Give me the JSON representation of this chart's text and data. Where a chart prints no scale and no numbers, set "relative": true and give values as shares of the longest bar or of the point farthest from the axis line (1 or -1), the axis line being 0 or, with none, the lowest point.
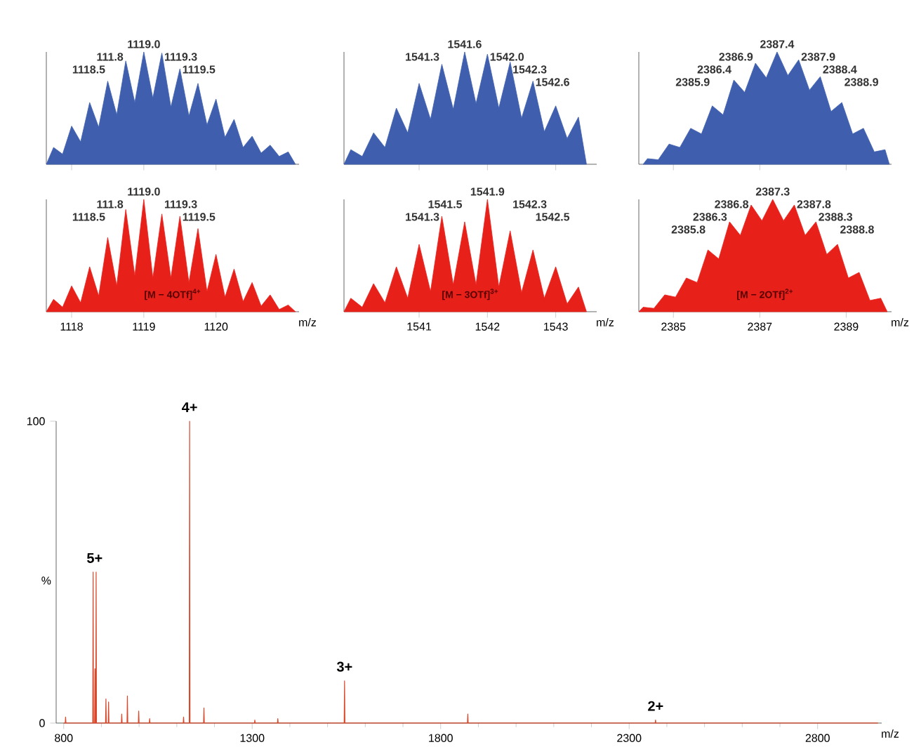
{
  "chart_data": [
    {
      "type": "area",
      "relative": true,
      "tick_labels": false,
      "xlim": [
        1117.65,
        1121.15
      ],
      "xticks": [
        1118,
        1119,
        1120
      ],
      "x": [
        1117.65,
        1117.75,
        1117.875,
        1118,
        1118.125,
        1118.25,
        1118.375,
        1118.5,
        1118.625,
        1118.75,
        1118.875,
        1119,
        1119.125,
        1119.25,
        1119.375,
        1119.5,
        1119.625,
        1119.75,
        1119.875,
        1120,
        1120.125,
        1120.25,
        1120.375,
        1120.5,
        1120.625,
        1120.75,
        1120.875,
        1121,
        1121.1
      ],
      "series": [
        {
          "color": "#3f5fae",
          "values": [
            0,
            0.15,
            0.09,
            0.34,
            0.2,
            0.55,
            0.33,
            0.74,
            0.44,
            0.92,
            0.55,
            1,
            0.59,
            0.99,
            0.51,
            0.85,
            0.43,
            0.72,
            0.35,
            0.58,
            0.24,
            0.4,
            0.15,
            0.25,
            0.1,
            0.17,
            0.07,
            0.11,
            0
          ]
        }
      ],
      "annotations": [
        {
          "text": "1118.5",
          "x": 1118.5,
          "y": 0.74
        },
        {
          "text": "111.8",
          "x": 1118.75,
          "y": 0.92
        },
        {
          "text": "1119.0",
          "x": 1119,
          "y": 1
        },
        {
          "text": "1119.3",
          "x": 1119.25,
          "y": 0.99
        },
        {
          "text": "1119.5",
          "x": 1119.5,
          "y": 0.85
        }
      ]
    },
    {
      "type": "area",
      "relative": true,
      "tick_labels": false,
      "xlim": [
        1539.9,
        1543.6
      ],
      "xticks": [
        1541,
        1542,
        1543
      ],
      "x": [
        1539.9,
        1540,
        1540.167,
        1540.333,
        1540.5,
        1540.667,
        1540.833,
        1541,
        1541.167,
        1541.333,
        1541.5,
        1541.667,
        1541.833,
        1542,
        1542.167,
        1542.333,
        1542.5,
        1542.667,
        1542.833,
        1543,
        1543.167,
        1543.333,
        1543.45
      ],
      "series": [
        {
          "color": "#3f5fae",
          "values": [
            0,
            0.13,
            0.07,
            0.28,
            0.15,
            0.5,
            0.28,
            0.72,
            0.4,
            0.89,
            0.49,
            1,
            0.54,
            0.98,
            0.5,
            0.91,
            0.41,
            0.74,
            0.29,
            0.52,
            0.23,
            0.42,
            0
          ]
        }
      ],
      "annotations": [
        {
          "text": "1541.3",
          "x": 1541.333,
          "y": 0.89
        },
        {
          "text": "1541.6",
          "x": 1541.667,
          "y": 1
        },
        {
          "text": "1542.0",
          "x": 1542,
          "y": 0.98
        },
        {
          "text": "1542.3",
          "x": 1542.333,
          "y": 0.91
        },
        {
          "text": "1542.6",
          "x": 1542.667,
          "y": 0.74
        }
      ]
    },
    {
      "type": "area",
      "relative": true,
      "tick_labels": false,
      "xlim": [
        2384.2,
        2390.05
      ],
      "xticks": [
        2385,
        2387,
        2389
      ],
      "x": [
        2384.3,
        2384.4,
        2384.65,
        2384.9,
        2385.15,
        2385.4,
        2385.65,
        2385.9,
        2386.15,
        2386.4,
        2386.65,
        2386.9,
        2387.15,
        2387.4,
        2387.65,
        2387.9,
        2388.15,
        2388.4,
        2388.65,
        2388.9,
        2389.15,
        2389.4,
        2389.65,
        2389.9,
        2390.0
      ],
      "series": [
        {
          "color": "#3f5fae",
          "values": [
            0,
            0.05,
            0.04,
            0.18,
            0.15,
            0.32,
            0.27,
            0.52,
            0.44,
            0.75,
            0.64,
            0.9,
            0.77,
            1,
            0.79,
            0.93,
            0.66,
            0.78,
            0.47,
            0.55,
            0.27,
            0.32,
            0.11,
            0.13,
            0
          ]
        }
      ],
      "annotations": [
        {
          "text": "2385.9",
          "x": 2385.9,
          "y": 0.52
        },
        {
          "text": "2386.4",
          "x": 2386.4,
          "y": 0.75
        },
        {
          "text": "2386.9",
          "x": 2386.9,
          "y": 0.9
        },
        {
          "text": "2387.4",
          "x": 2387.4,
          "y": 1
        },
        {
          "text": "2387.9",
          "x": 2387.9,
          "y": 0.93
        },
        {
          "text": "2388.4",
          "x": 2388.4,
          "y": 0.78
        },
        {
          "text": "2388.9",
          "x": 2388.9,
          "y": 0.55
        }
      ]
    },
    {
      "type": "area",
      "relative": true,
      "tick_labels": "x",
      "xlabel": "m/z",
      "xlim": [
        1117.65,
        1121.15
      ],
      "xticks": [
        1118,
        1119,
        1120
      ],
      "x": [
        1117.65,
        1117.75,
        1117.875,
        1118,
        1118.125,
        1118.25,
        1118.375,
        1118.5,
        1118.625,
        1118.75,
        1118.875,
        1119,
        1119.125,
        1119.25,
        1119.375,
        1119.5,
        1119.625,
        1119.75,
        1119.875,
        1120,
        1120.125,
        1120.25,
        1120.375,
        1120.5,
        1120.625,
        1120.75,
        1120.875,
        1121,
        1121.1
      ],
      "series": [
        {
          "color": "#e8201a",
          "values": [
            0,
            0.11,
            0.04,
            0.23,
            0.08,
            0.4,
            0.14,
            0.66,
            0.23,
            0.91,
            0.32,
            1,
            0.3,
            0.87,
            0.3,
            0.85,
            0.26,
            0.74,
            0.18,
            0.51,
            0.13,
            0.38,
            0.09,
            0.26,
            0.05,
            0.15,
            0.02,
            0.06,
            0
          ]
        }
      ],
      "annotations": [
        {
          "text": "1118.5",
          "x": 1118.5,
          "y": 0.66
        },
        {
          "text": "111.8",
          "x": 1118.75,
          "y": 0.91
        },
        {
          "text": "1119.0",
          "x": 1119,
          "y": 1
        },
        {
          "text": "1119.3",
          "x": 1119.25,
          "y": 0.87
        },
        {
          "text": "1119.5",
          "x": 1119.5,
          "y": 0.85
        },
        "[M − 4OTf]$^{4+}$"
      ]
    },
    {
      "type": "area",
      "relative": true,
      "tick_labels": "x",
      "xlabel": "m/z",
      "xlim": [
        1539.9,
        1543.6
      ],
      "xticks": [
        1541,
        1542,
        1543
      ],
      "x": [
        1539.9,
        1540,
        1540.167,
        1540.333,
        1540.5,
        1540.667,
        1540.833,
        1541,
        1541.167,
        1541.333,
        1541.5,
        1541.667,
        1541.833,
        1542,
        1542.167,
        1542.333,
        1542.5,
        1542.667,
        1542.833,
        1543,
        1543.167,
        1543.333,
        1543.45
      ],
      "series": [
        {
          "color": "#e8201a",
          "values": [
            0,
            0.12,
            0.04,
            0.25,
            0.08,
            0.4,
            0.12,
            0.6,
            0.18,
            0.85,
            0.24,
            0.8,
            0.24,
            1,
            0.22,
            0.72,
            0.17,
            0.55,
            0.12,
            0.4,
            0.07,
            0.22,
            0
          ]
        }
      ],
      "annotations": [
        {
          "text": "1541.3",
          "x": 1541.333,
          "y": 0.85
        },
        {
          "text": "1541.5",
          "x": 1541.667,
          "y": 0.8
        },
        {
          "text": "1541.9",
          "x": 1542,
          "y": 1
        },
        {
          "text": "1542.3",
          "x": 1542.333,
          "y": 0.72
        },
        {
          "text": "1542.5",
          "x": 1542.667,
          "y": 0.55
        },
        "[M − 3OTf]$^{3+}$"
      ]
    },
    {
      "type": "area",
      "relative": true,
      "tick_labels": "x",
      "xlabel": "m/z",
      "xlim": [
        2384.2,
        2390.05
      ],
      "xticks": [
        2385,
        2387,
        2389
      ],
      "x": [
        2384.2,
        2384.3,
        2384.55,
        2384.8,
        2385.05,
        2385.3,
        2385.55,
        2385.8,
        2386.05,
        2386.3,
        2386.55,
        2386.8,
        2387.05,
        2387.3,
        2387.55,
        2387.8,
        2388.05,
        2388.3,
        2388.55,
        2388.8,
        2389.05,
        2389.3,
        2389.55,
        2389.8,
        2389.95
      ],
      "series": [
        {
          "color": "#e8201a",
          "values": [
            0,
            0.04,
            0.03,
            0.15,
            0.13,
            0.3,
            0.26,
            0.55,
            0.47,
            0.8,
            0.68,
            0.95,
            0.81,
            1,
            0.81,
            0.95,
            0.68,
            0.8,
            0.51,
            0.6,
            0.3,
            0.35,
            0.1,
            0.12,
            0
          ]
        }
      ],
      "annotations": [
        {
          "text": "2385.8",
          "x": 2385.8,
          "y": 0.55
        },
        {
          "text": "2386.3",
          "x": 2386.3,
          "y": 0.8
        },
        {
          "text": "2386.8",
          "x": 2386.8,
          "y": 0.95
        },
        {
          "text": "2387.3",
          "x": 2387.3,
          "y": 1
        },
        {
          "text": "2387.8",
          "x": 2387.8,
          "y": 0.95
        },
        {
          "text": "2388.3",
          "x": 2388.3,
          "y": 0.8
        },
        {
          "text": "2388.8",
          "x": 2388.8,
          "y": 0.6
        },
        "[M − 2OTf]$^{2+}$"
      ]
    },
    {
      "type": "line",
      "xlabel": "m/z",
      "ylabel": "%",
      "xlim": [
        780,
        2970
      ],
      "xticks": [
        800,
        1300,
        1800,
        2300,
        2800
      ],
      "ylim": [
        0,
        100
      ],
      "yticks": [
        0,
        100
      ],
      "x": [
        800,
        804,
        805,
        806,
        877,
        878,
        879,
        882,
        883,
        884,
        885,
        886,
        887,
        911,
        912,
        913,
        918,
        919,
        920,
        953,
        954,
        955,
        968,
        969,
        970,
        998,
        999,
        1000,
        1027,
        1028,
        1029,
        1117,
        1118,
        1119,
        1133,
        1134,
        1135,
        1171,
        1172,
        1173,
        1306,
        1307,
        1308,
        1367,
        1368,
        1369,
        1544,
        1545,
        1546,
        1871,
        1872,
        1873,
        2369,
        2370,
        2371,
        2960
      ],
      "series": [
        {
          "color": "#d9482b",
          "values": [
            0,
            0,
            2,
            0,
            0,
            50,
            0,
            0,
            18,
            0,
            0,
            50,
            0,
            0,
            8,
            0,
            0,
            7,
            0,
            0,
            3,
            0,
            0,
            9,
            0,
            0,
            4,
            0,
            0,
            1.5,
            0,
            0,
            2,
            0,
            0,
            100,
            0,
            0,
            5,
            0,
            0,
            1,
            0,
            0,
            1.5,
            0,
            0,
            14,
            0,
            0,
            3,
            0,
            0,
            1,
            0,
            0
          ]
        }
      ],
      "annotations": [
        {
          "text": "5+",
          "x": 882,
          "y": 50
        },
        {
          "text": "4+",
          "x": 1134,
          "y": 100
        },
        {
          "text": "3+",
          "x": 1545,
          "y": 14
        },
        {
          "text": "2+",
          "x": 2370,
          "y": 1
        }
      ]
    }
  ]
}
